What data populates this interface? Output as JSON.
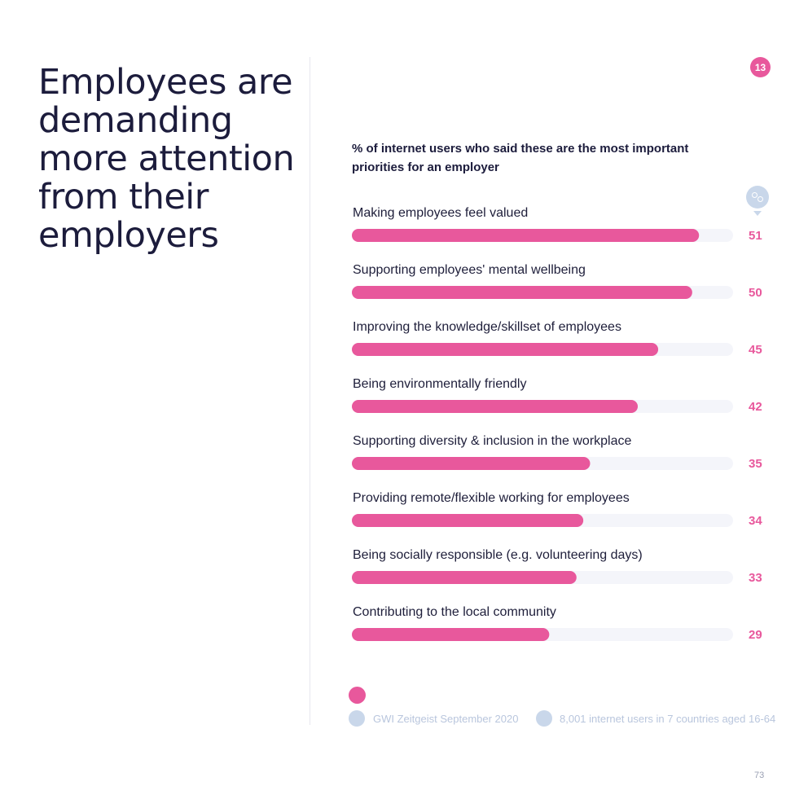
{
  "headline": "Employees are demanding more attention from their employers",
  "page_badge": "13",
  "footer": {
    "source": "GWI Zeitgeist September 2020",
    "base": "8,001 internet users in 7 countries aged 16-64",
    "page_number": "73"
  },
  "chart_data": {
    "type": "bar",
    "orientation": "horizontal",
    "title": "% of internet users who said these are the most important priorities for an employer",
    "categories": [
      "Making employees feel valued",
      "Supporting employees' mental wellbeing",
      "Improving the knowledge/skillset of employees",
      "Being environmentally friendly",
      "Supporting diversity & inclusion in the workplace",
      "Providing remote/flexible working for employees",
      "Being socially responsible (e.g. volunteering days)",
      "Contributing to the local community"
    ],
    "values": [
      51,
      50,
      45,
      42,
      35,
      34,
      33,
      29
    ],
    "xlim": [
      0,
      56
    ],
    "bar_color": "#e8589c",
    "track_color": "#f4f5fa",
    "grid": false
  }
}
